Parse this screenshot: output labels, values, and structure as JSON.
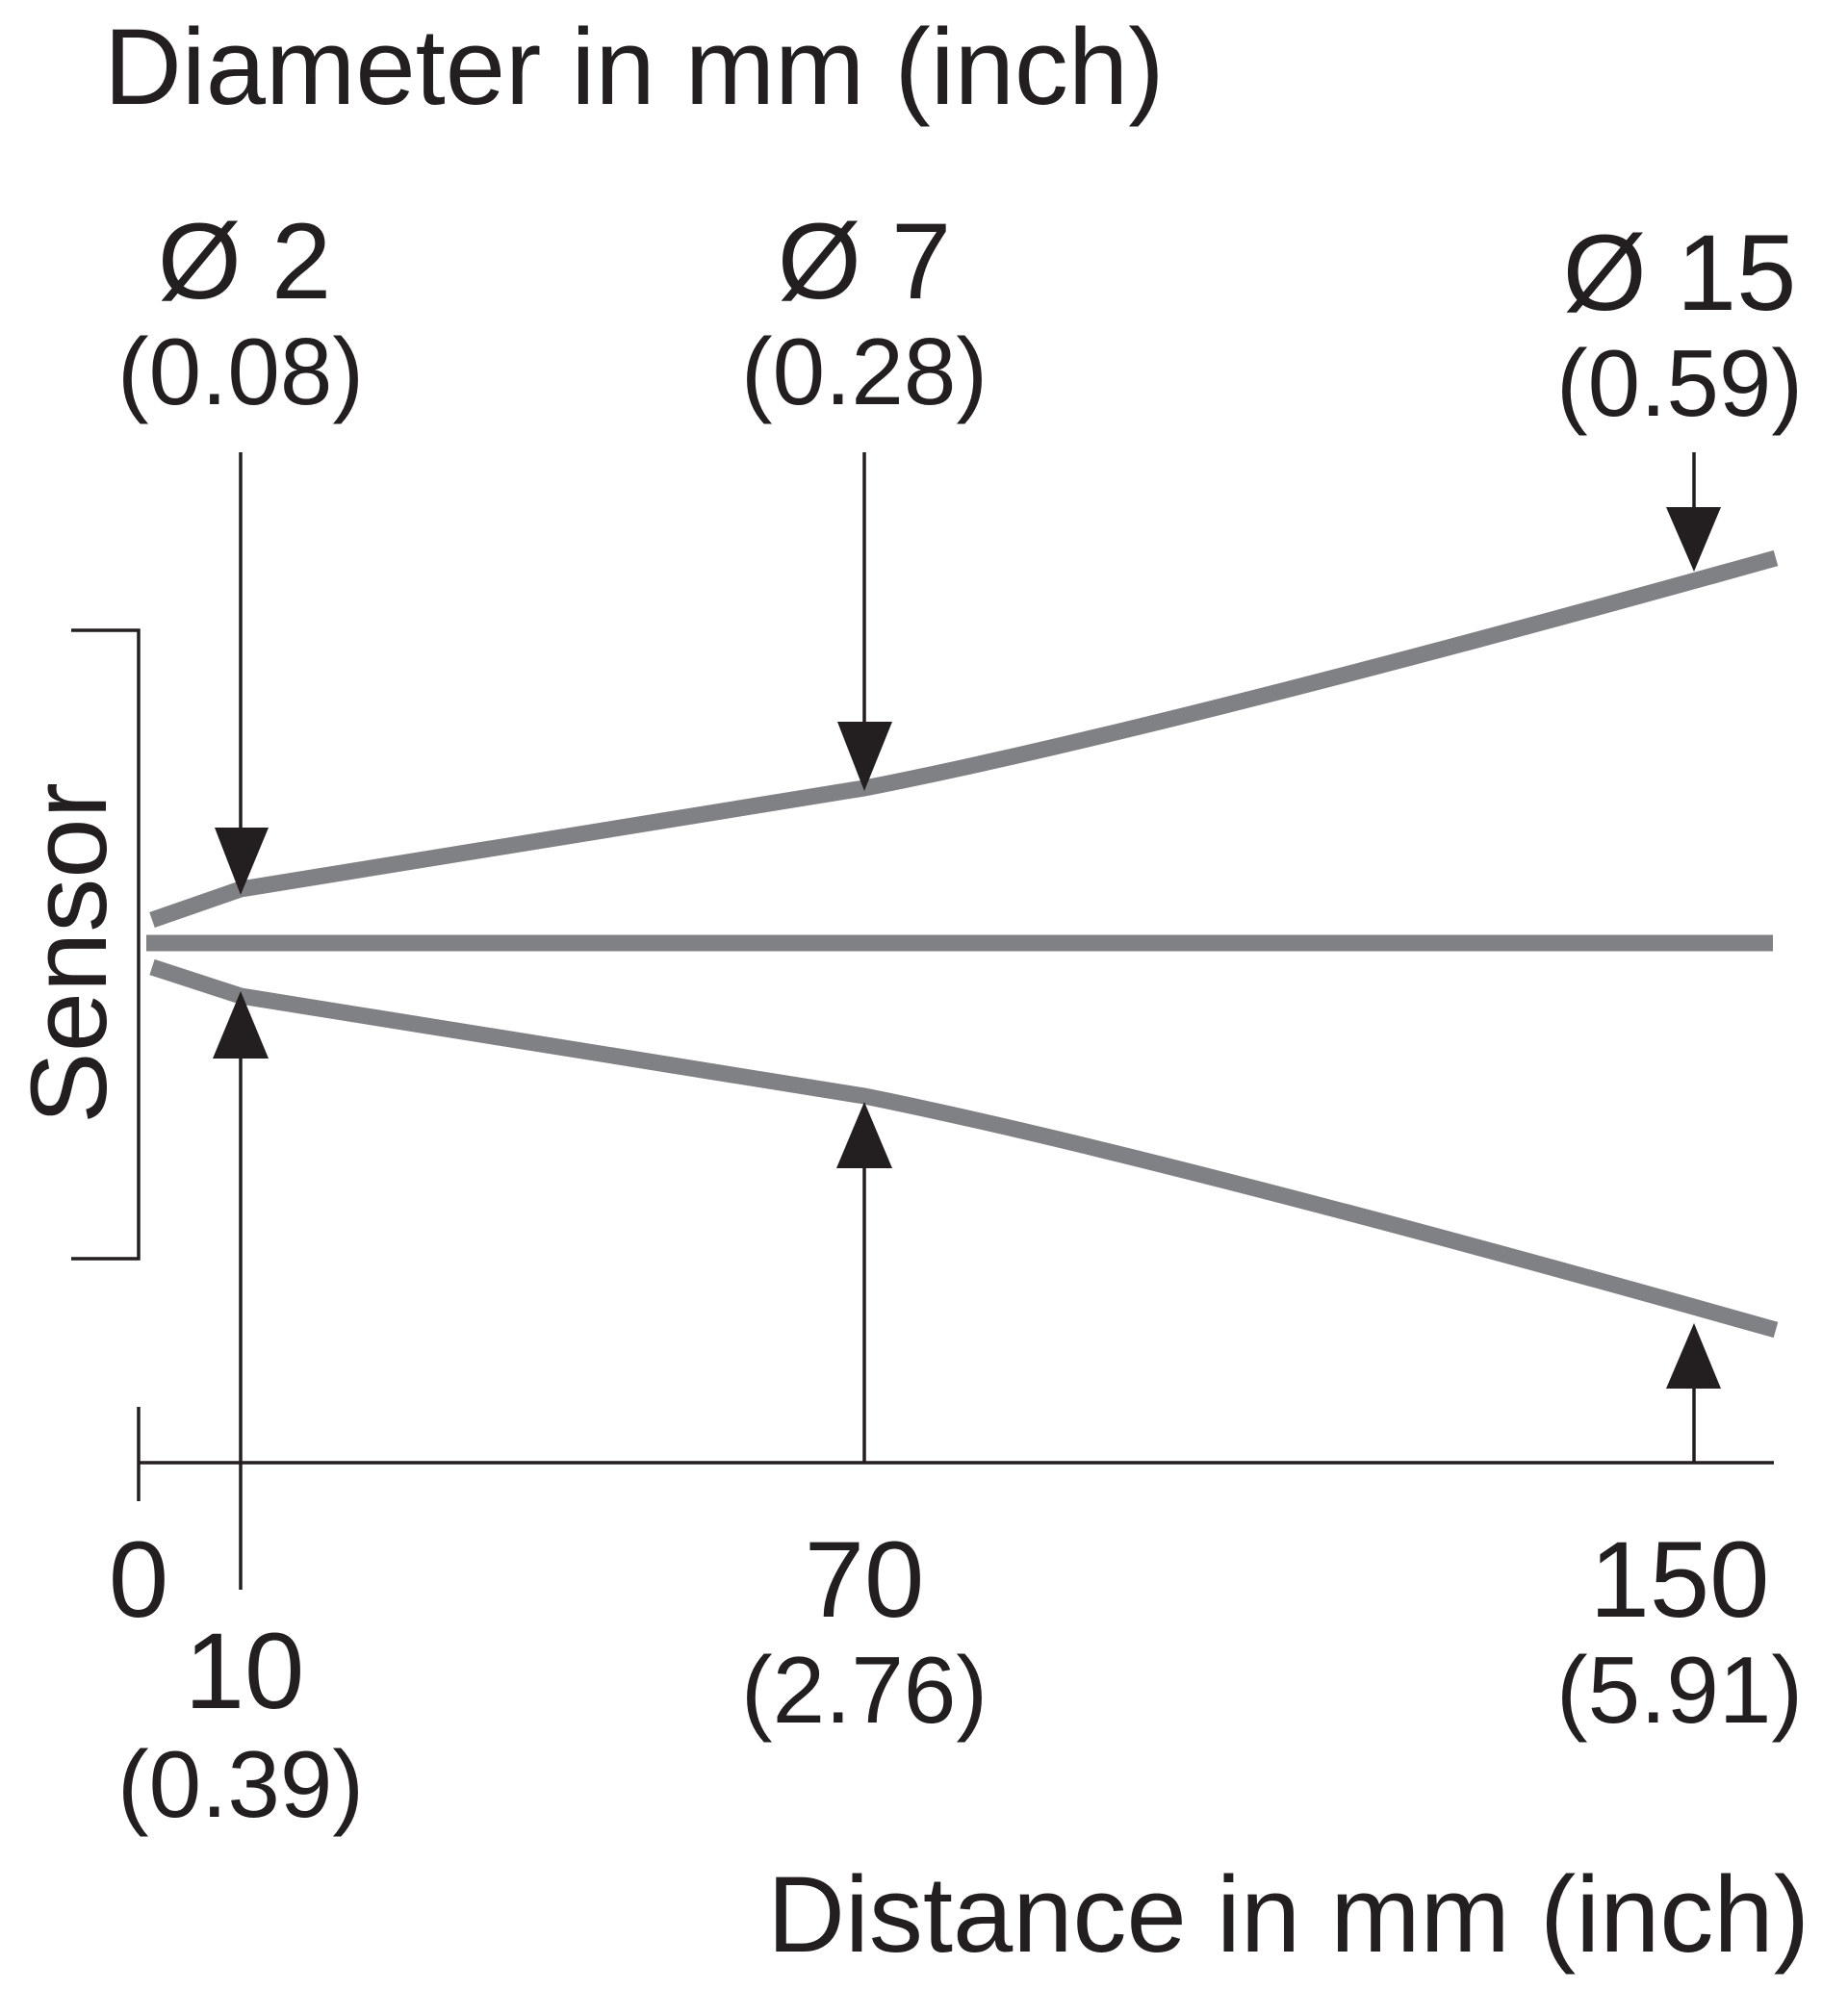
{
  "diagram": {
    "title_top": "Diameter in mm (inch)",
    "title_bottom": "Distance in mm (inch)",
    "sensor_label": "Sensor",
    "beam_color": "#808184",
    "line_color": "#231f20",
    "diameter_labels": [
      {
        "value": "Ø 2",
        "inch": "(0.08)"
      },
      {
        "value": "Ø 7",
        "inch": "(0.28)"
      },
      {
        "value": "Ø 15",
        "inch": "(0.59)"
      }
    ],
    "distance_labels": [
      {
        "value": "0"
      },
      {
        "value": "10",
        "inch": "(0.39)"
      },
      {
        "value": "70",
        "inch": "(2.76)"
      },
      {
        "value": "150",
        "inch": "(5.91)"
      }
    ]
  }
}
